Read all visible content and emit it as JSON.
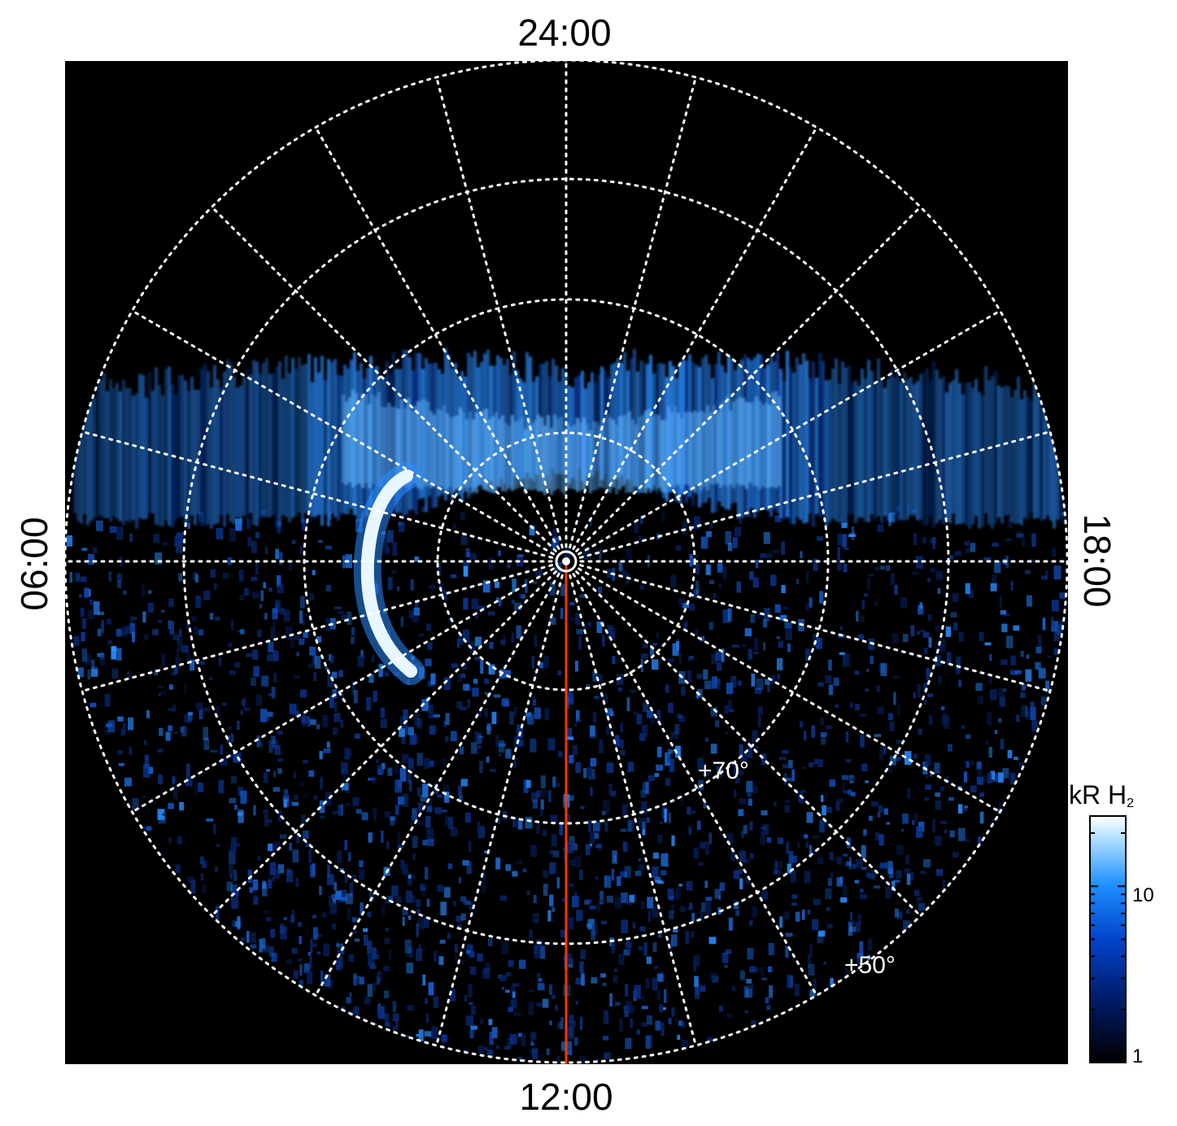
{
  "figure": {
    "local_time_labels": {
      "top": "24:00",
      "bottom": "12:00",
      "left": "06:00",
      "right": "18:00"
    },
    "latitude_labels": [
      "+70°",
      "+50°"
    ],
    "colorbar": {
      "title": "kR H",
      "title_subscript": "2",
      "tick_labels": [
        "10",
        "1"
      ],
      "scale": "log",
      "colors": [
        "#000000",
        "#001a66",
        "#0044cc",
        "#1e90ff",
        "#a8dcff",
        "#ffffff"
      ]
    },
    "colors": {
      "background": "#000000",
      "grid": "#ffffff",
      "meridian": "#ff3300",
      "aurora_bright": "#e8f6ff",
      "aurora_mid": "#2a8cff",
      "aurora_dim": "#0b3c9e"
    }
  }
}
